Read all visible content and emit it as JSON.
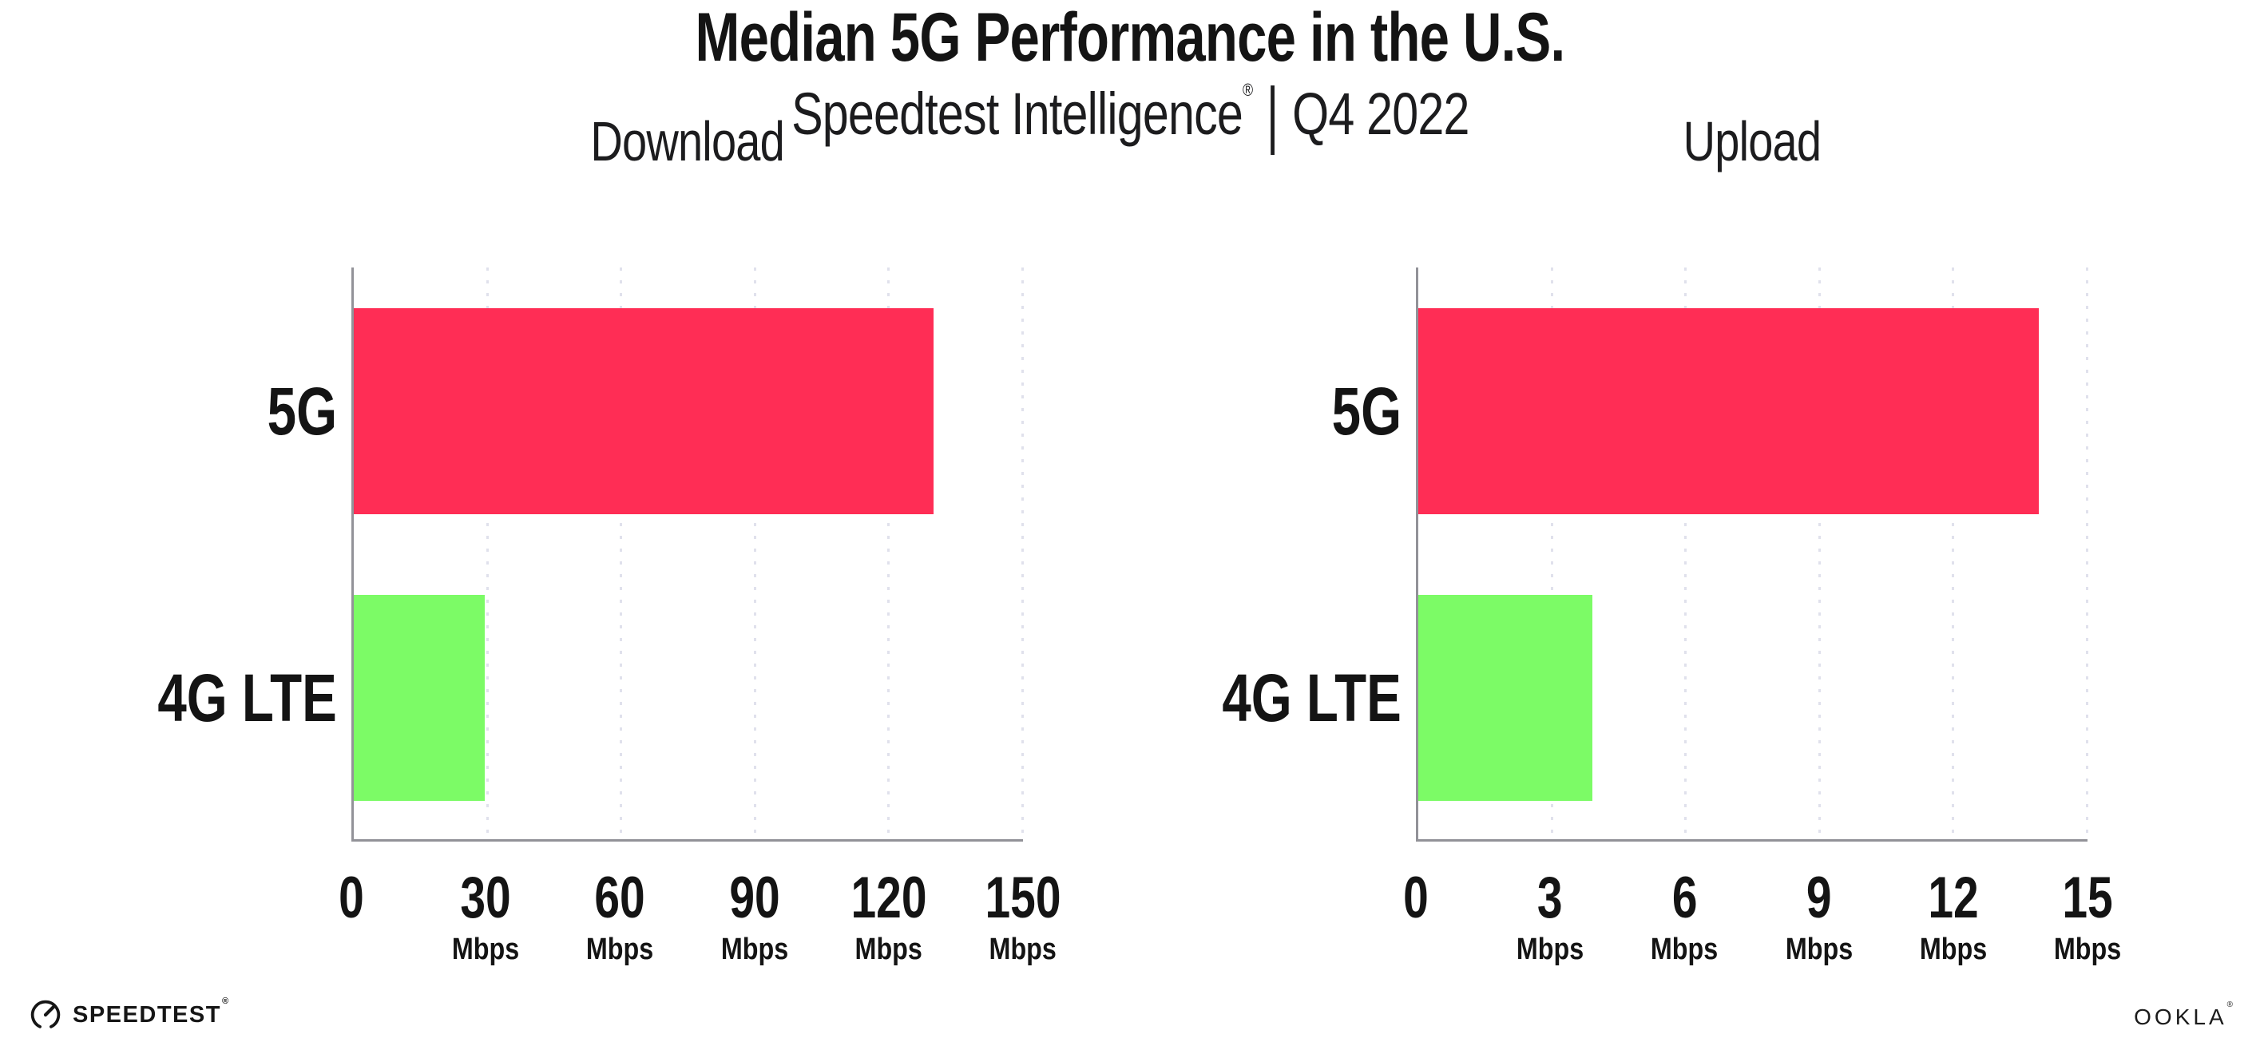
{
  "title": "Median 5G Performance in the U.S.",
  "subtitle": {
    "product": "Speedtest Intelligence",
    "reg_mark": "®",
    "separator": "|",
    "period": "Q4 2022"
  },
  "colors": {
    "bar_5g": "#FF2D55",
    "bar_4g_lte": "#7CFB66",
    "axis": "#929298",
    "gridline": "#E0E1EC",
    "text": "#141414"
  },
  "chart_data": [
    {
      "type": "bar",
      "orientation": "horizontal",
      "title": "Download",
      "categories": [
        "5G",
        "4G LTE"
      ],
      "values": [
        130,
        29.4
      ],
      "unit": "Mbps",
      "xlim": [
        0,
        150
      ],
      "ticks": [
        0,
        30,
        60,
        90,
        120,
        150
      ],
      "grid": "dotted-vertical",
      "legend": "none",
      "bar_colors": [
        "#FF2D55",
        "#7CFB66"
      ]
    },
    {
      "type": "bar",
      "orientation": "horizontal",
      "title": "Upload",
      "categories": [
        "5G",
        "4G LTE"
      ],
      "values": [
        13.9,
        3.9
      ],
      "unit": "Mbps",
      "xlim": [
        0,
        15
      ],
      "ticks": [
        0,
        3,
        6,
        9,
        12,
        15
      ],
      "grid": "dotted-vertical",
      "legend": "none",
      "bar_colors": [
        "#FF2D55",
        "#7CFB66"
      ]
    }
  ],
  "footer": {
    "speedtest_label": "SPEEDTEST",
    "speedtest_mark": "®",
    "ookla_label": "OOKLA",
    "ookla_mark": "®"
  }
}
